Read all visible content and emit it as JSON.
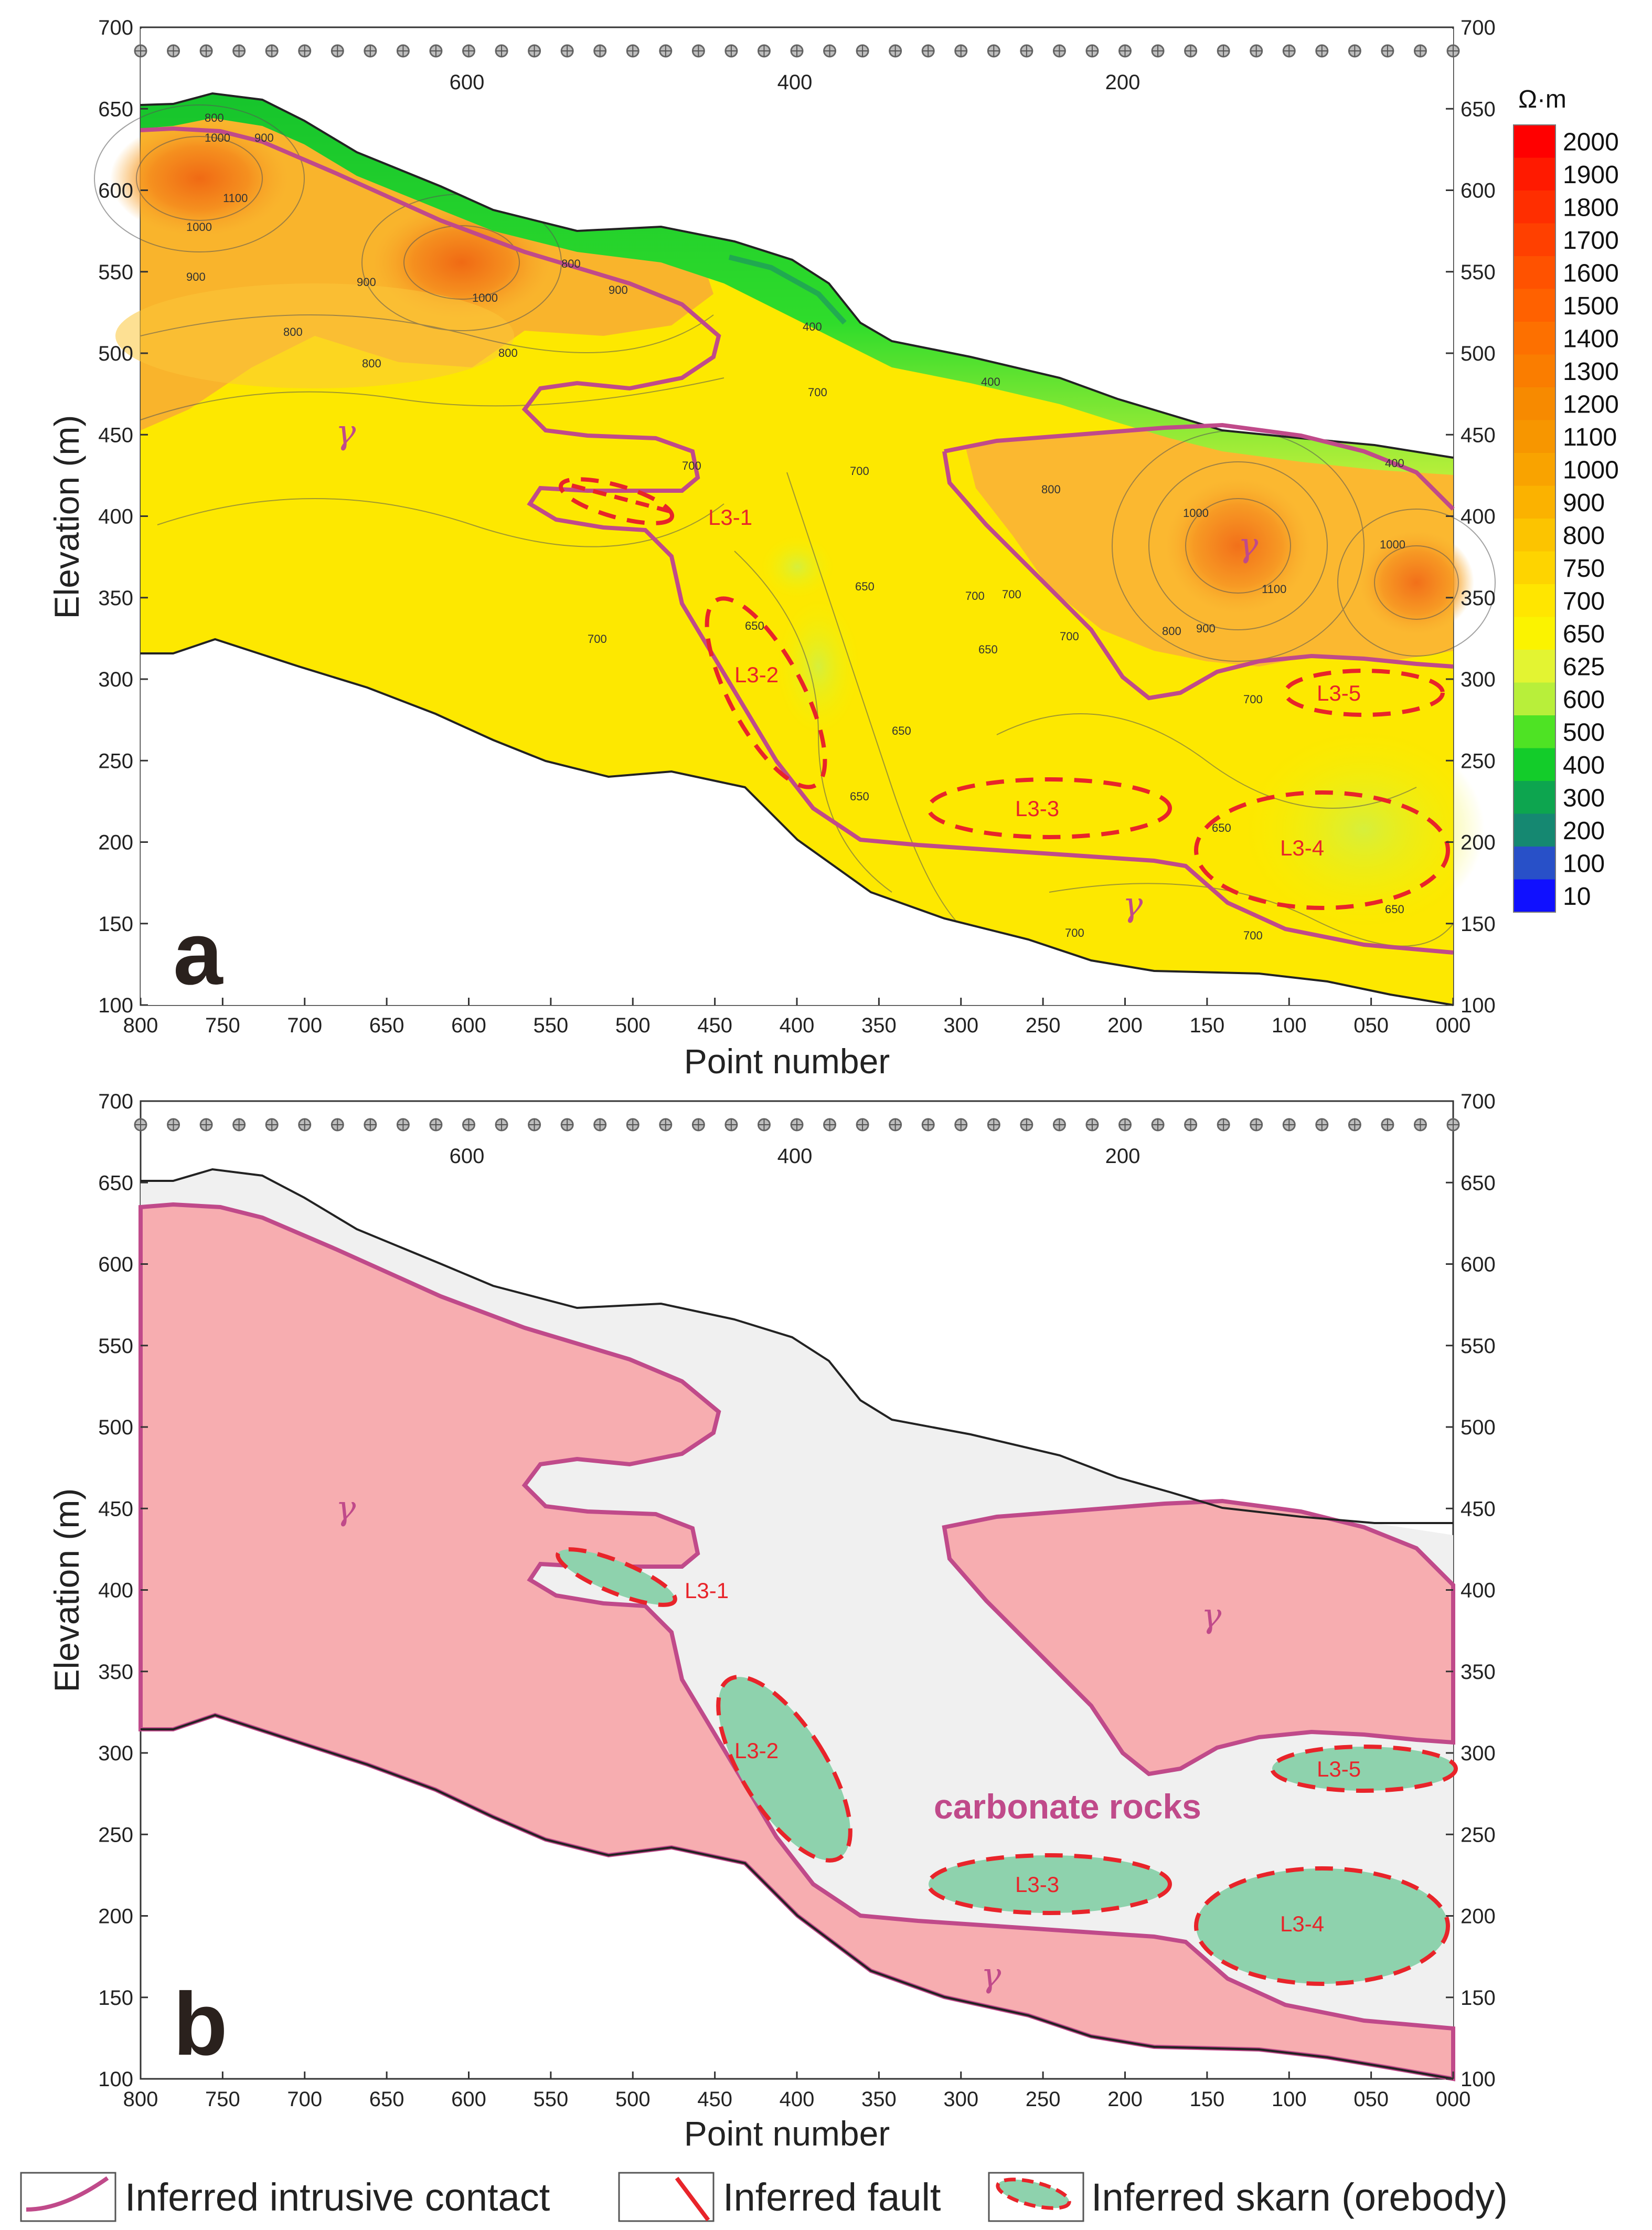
{
  "panel_a": {
    "label": "a",
    "y_axis_label": "Elevation (m)",
    "x_axis_label": "Point number",
    "y_ticks": [
      "700",
      "650",
      "600",
      "550",
      "500",
      "450",
      "400",
      "350",
      "300",
      "250",
      "200",
      "150",
      "100"
    ],
    "x_ticks": [
      "800",
      "750",
      "700",
      "650",
      "600",
      "550",
      "500",
      "450",
      "400",
      "350",
      "300",
      "250",
      "200",
      "150",
      "100",
      "050",
      "000"
    ],
    "station_labels": [
      "600",
      "400",
      "200"
    ],
    "gamma_labels": [
      "γ",
      "γ",
      "γ"
    ],
    "contour_labels": [
      "800",
      "1000",
      "900",
      "1100",
      "1000",
      "900",
      "1000",
      "900",
      "800",
      "900",
      "800",
      "800",
      "800",
      "700",
      "700",
      "700",
      "650",
      "650",
      "700",
      "650",
      "700",
      "650",
      "700",
      "650",
      "800",
      "1000",
      "1100",
      "900",
      "1000",
      "800",
      "700",
      "700",
      "650",
      "700",
      "700",
      "400",
      "400",
      "400",
      "650"
    ],
    "colorbar": {
      "unit": "Ω·m",
      "labels": [
        "2000",
        "1900",
        "1800",
        "1700",
        "1600",
        "1500",
        "1400",
        "1300",
        "1200",
        "1100",
        "1000",
        "900",
        "800",
        "750",
        "700",
        "650",
        "625",
        "600",
        "500",
        "400",
        "300",
        "200",
        "100",
        "10"
      ],
      "colors": [
        "#ff0000",
        "#ff1a00",
        "#ff2e00",
        "#ff4000",
        "#ff5200",
        "#ff6100",
        "#fd7000",
        "#fa7d00",
        "#f78a00",
        "#f79600",
        "#f9a300",
        "#fbb200",
        "#fcc400",
        "#fed400",
        "#ffe600",
        "#fbf300",
        "#e3f432",
        "#b8ef3a",
        "#4ee324",
        "#13cc2a",
        "#0da54f",
        "#158871",
        "#2850c8",
        "#1010ff"
      ]
    },
    "orebody_labels": [
      "L3-1",
      "L3-2",
      "L3-3",
      "L3-4",
      "L3-5"
    ]
  },
  "panel_b": {
    "label": "b",
    "y_axis_label": "Elevation (m)",
    "x_axis_label": "Point number",
    "y_ticks": [
      "700",
      "650",
      "600",
      "550",
      "500",
      "450",
      "400",
      "350",
      "300",
      "250",
      "200",
      "150",
      "100"
    ],
    "x_ticks": [
      "800",
      "750",
      "700",
      "650",
      "600",
      "550",
      "500",
      "450",
      "400",
      "350",
      "300",
      "250",
      "200",
      "150",
      "100",
      "050",
      "000"
    ],
    "station_labels": [
      "600",
      "400",
      "200"
    ],
    "gamma_labels": [
      "γ",
      "γ",
      "γ"
    ],
    "rock_label": "carbonate rocks",
    "orebody_labels": [
      "L3-1",
      "L3-2",
      "L3-3",
      "L3-4",
      "L3-5"
    ]
  },
  "legend": {
    "contact": "Inferred intrusive contact",
    "fault": "Inferred fault",
    "skarn": "Inferred skarn (orebody)"
  },
  "colors": {
    "contact": "#c04a8a",
    "fault": "#e8242a",
    "skarn_fill": "#8ed2ad",
    "granite_fill": "#f7adb0",
    "carbonate_fill": "#f0f0f0",
    "green_layer": "#18c830",
    "orange_high": "#f38a1c",
    "yellow_field": "#ffe800"
  }
}
